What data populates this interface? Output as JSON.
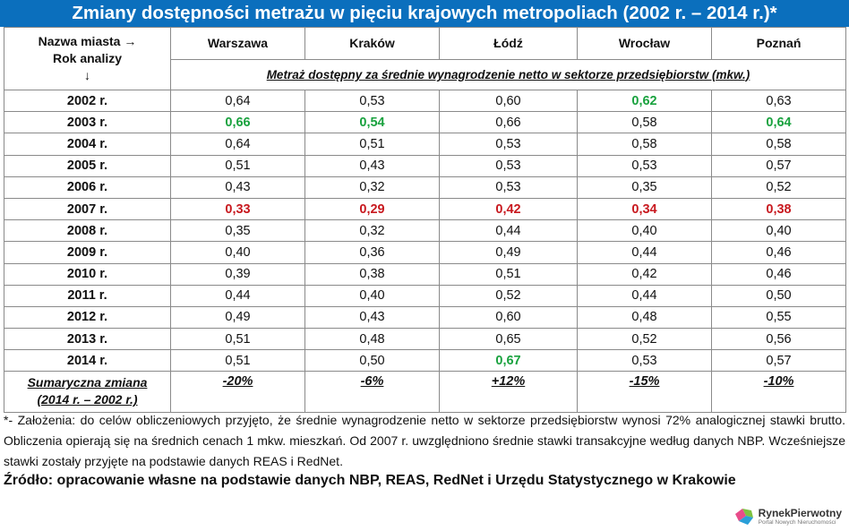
{
  "title": "Zmiany dostępności metrażu w pięciu krajowych metropoliach (2002 r. – 2014 r.)*",
  "header": {
    "corner_line1": "Nazwa miasta →",
    "corner_line2": "Rok analizy",
    "corner_line3": "↓",
    "subheader": "Metraż dostępny za średnie wynagrodzenie netto w sektorze przedsiębiorstw (mkw.)"
  },
  "colors": {
    "title_bg": "#0b6fbd",
    "highlight_max": "#1aa23f",
    "highlight_min": "#c8191f"
  },
  "chart_data": {
    "type": "table",
    "title": "Zmiany dostępności metrażu w pięciu krajowych metropoliach (2002 r. – 2014 r.)*",
    "columns": [
      "Warszawa",
      "Kraków",
      "Łódź",
      "Wrocław",
      "Poznań"
    ],
    "rows": [
      {
        "year": "2002 r.",
        "values": [
          "0,64",
          "0,53",
          "0,60",
          "0,62",
          "0,63"
        ],
        "style": [
          "",
          "",
          "",
          "green",
          ""
        ]
      },
      {
        "year": "2003 r.",
        "values": [
          "0,66",
          "0,54",
          "0,66",
          "0,58",
          "0,64"
        ],
        "style": [
          "green",
          "green",
          "",
          "",
          "green"
        ]
      },
      {
        "year": "2004 r.",
        "values": [
          "0,64",
          "0,51",
          "0,53",
          "0,58",
          "0,58"
        ],
        "style": [
          "",
          "",
          "",
          "",
          ""
        ]
      },
      {
        "year": "2005 r.",
        "values": [
          "0,51",
          "0,43",
          "0,53",
          "0,53",
          "0,57"
        ],
        "style": [
          "",
          "",
          "",
          "",
          ""
        ]
      },
      {
        "year": "2006 r.",
        "values": [
          "0,43",
          "0,32",
          "0,53",
          "0,35",
          "0,52"
        ],
        "style": [
          "",
          "",
          "",
          "",
          ""
        ]
      },
      {
        "year": "2007 r.",
        "values": [
          "0,33",
          "0,29",
          "0,42",
          "0,34",
          "0,38"
        ],
        "style": [
          "red",
          "red",
          "red",
          "red",
          "red"
        ]
      },
      {
        "year": "2008 r.",
        "values": [
          "0,35",
          "0,32",
          "0,44",
          "0,40",
          "0,40"
        ],
        "style": [
          "",
          "",
          "",
          "",
          ""
        ]
      },
      {
        "year": "2009 r.",
        "values": [
          "0,40",
          "0,36",
          "0,49",
          "0,44",
          "0,46"
        ],
        "style": [
          "",
          "",
          "",
          "",
          ""
        ]
      },
      {
        "year": "2010 r.",
        "values": [
          "0,39",
          "0,38",
          "0,51",
          "0,42",
          "0,46"
        ],
        "style": [
          "",
          "",
          "",
          "",
          ""
        ]
      },
      {
        "year": "2011 r.",
        "values": [
          "0,44",
          "0,40",
          "0,52",
          "0,44",
          "0,50"
        ],
        "style": [
          "",
          "",
          "",
          "",
          ""
        ]
      },
      {
        "year": "2012 r.",
        "values": [
          "0,49",
          "0,43",
          "0,60",
          "0,48",
          "0,55"
        ],
        "style": [
          "",
          "",
          "",
          "",
          ""
        ]
      },
      {
        "year": "2013 r.",
        "values": [
          "0,51",
          "0,48",
          "0,65",
          "0,52",
          "0,56"
        ],
        "style": [
          "",
          "",
          "",
          "",
          ""
        ]
      },
      {
        "year": "2014 r.",
        "values": [
          "0,51",
          "0,50",
          "0,67",
          "0,53",
          "0,57"
        ],
        "style": [
          "",
          "",
          "green",
          "",
          ""
        ]
      }
    ],
    "summary": {
      "label_line1": "Sumaryczna zmiana",
      "label_line2": "(2014 r. – 2002 r.)",
      "values": [
        "-20%",
        "-6%",
        "+12%",
        "-15%",
        "-10%"
      ]
    }
  },
  "notes": {
    "line1": "*- Założenia: do celów obliczeniowych przyjęto, że średnie wynagrodzenie netto w sektorze przedsiębiorstw wynosi 72% analogicznej stawki brutto. Obliczenia opierają się na średnich cenach 1 mkw. mieszkań. Od 2007 r. uwzględniono średnie stawki transakcyjne według danych NBP. Wcześniejsze stawki zostały przyjęte na podstawie danych REAS i RedNet.",
    "source": "Źródło: opracowanie własne na podstawie danych NBP, REAS, RedNet i Urzędu Statystycznego w Krakowie"
  },
  "logo": {
    "name": "RynekPierwotny",
    "tagline": "Portal Nowych Nieruchomości"
  }
}
